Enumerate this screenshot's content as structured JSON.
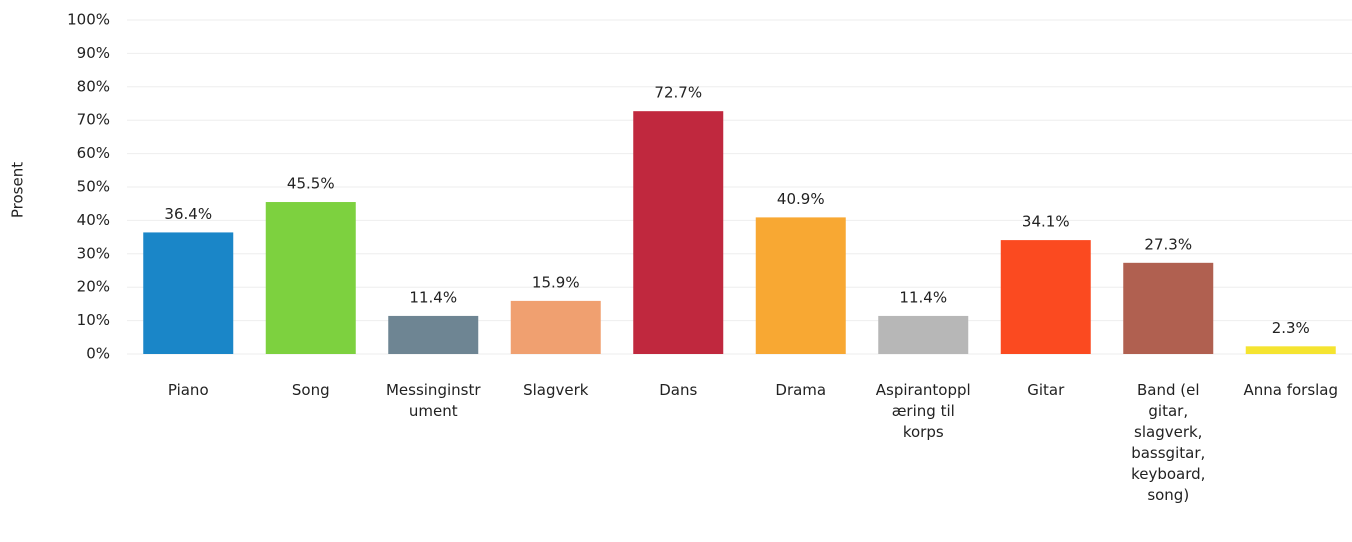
{
  "chart_data": {
    "type": "bar",
    "y_axis_label": "Prosent",
    "categories": [
      "Piano",
      "Song",
      "Messinginstrument",
      "Slagverk",
      "Dans",
      "Drama",
      "Aspirantopplæring til korps",
      "Gitar",
      "Band (el gitar, slagverk, bassgitar, keyboard, song)",
      "Anna forslag"
    ],
    "values": [
      36.4,
      45.5,
      11.4,
      15.9,
      72.7,
      40.9,
      11.4,
      34.1,
      27.3,
      2.3
    ],
    "value_labels": [
      "36.4%",
      "45.5%",
      "11.4%",
      "15.9%",
      "72.7%",
      "40.9%",
      "11.4%",
      "34.1%",
      "27.3%",
      "2.3%"
    ],
    "colors": [
      "#1a86c8",
      "#7dd13f",
      "#6e8593",
      "#f0a070",
      "#c0283e",
      "#f8a833",
      "#b7b7b7",
      "#fb4a20",
      "#b06050",
      "#f5e430"
    ],
    "ylim": [
      0,
      100
    ],
    "yticks": [
      {
        "value": 0,
        "label": "0%"
      },
      {
        "value": 10,
        "label": "10%"
      },
      {
        "value": 20,
        "label": "20%"
      },
      {
        "value": 30,
        "label": "30%"
      },
      {
        "value": 40,
        "label": "40%"
      },
      {
        "value": 50,
        "label": "50%"
      },
      {
        "value": 60,
        "label": "60%"
      },
      {
        "value": 70,
        "label": "70%"
      },
      {
        "value": 80,
        "label": "80%"
      },
      {
        "value": 90,
        "label": "90%"
      },
      {
        "value": 100,
        "label": "100%"
      }
    ],
    "grid": true
  }
}
